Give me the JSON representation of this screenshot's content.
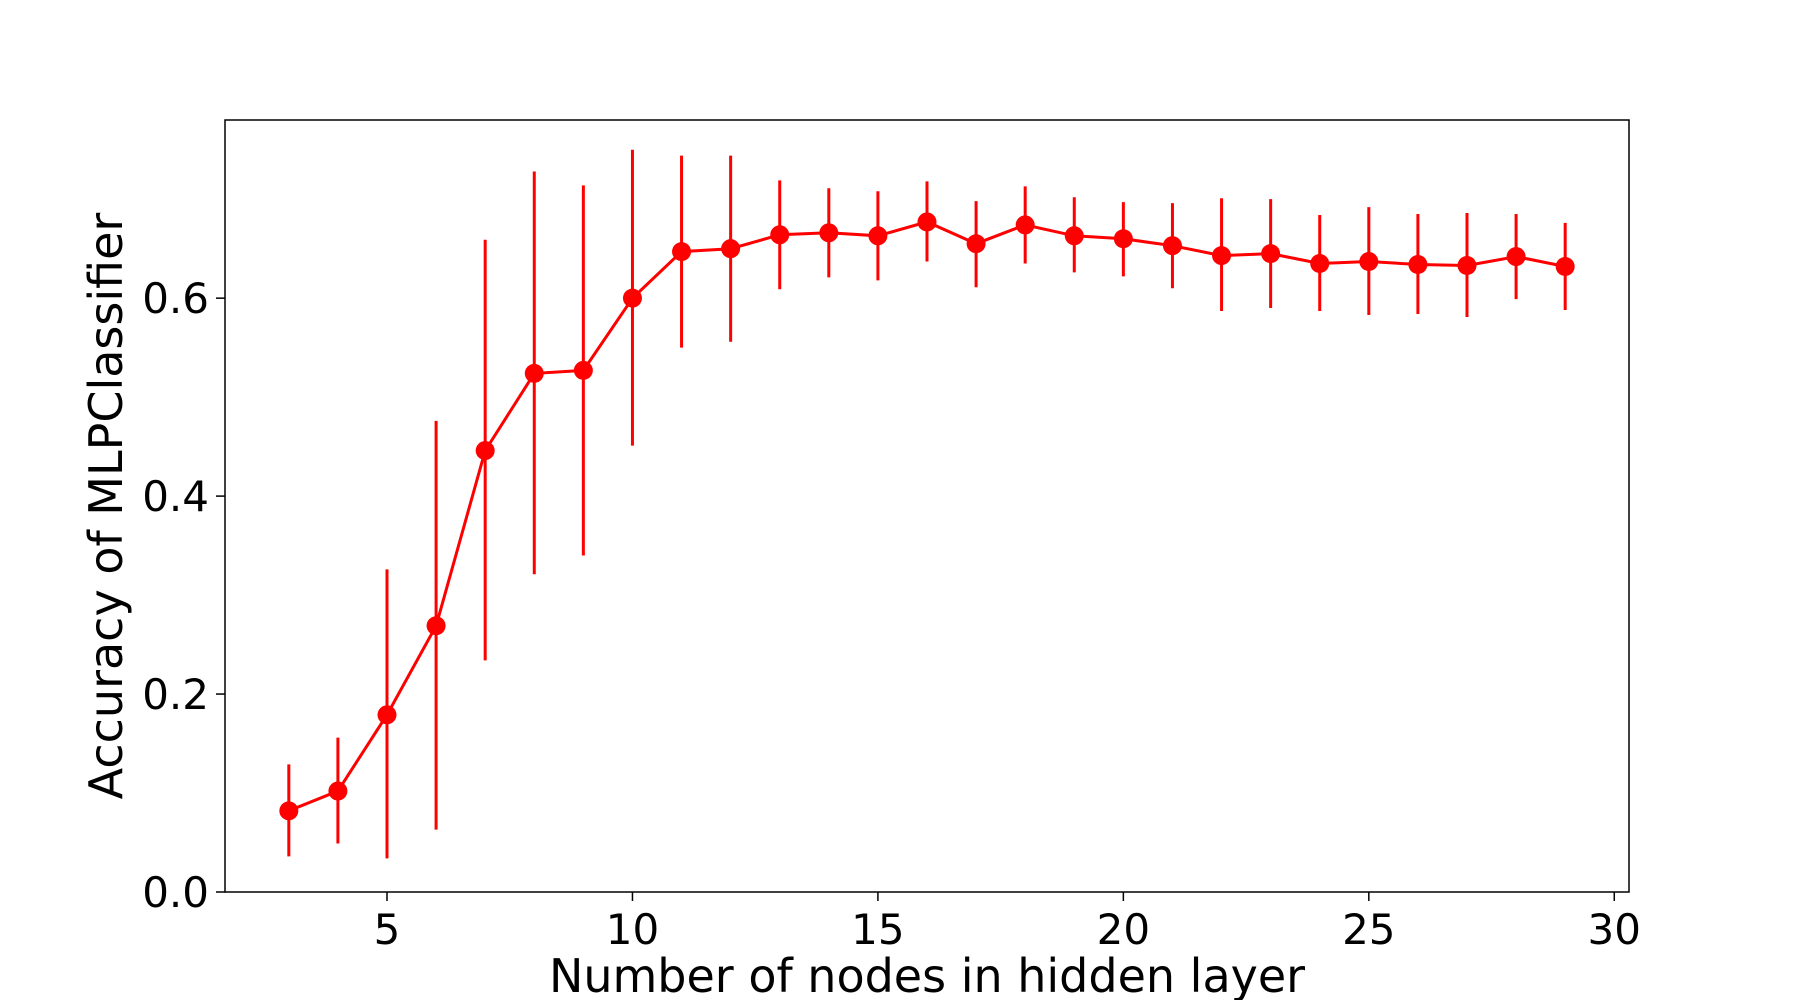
{
  "chart_data": {
    "type": "line",
    "title": "",
    "xlabel": "Number of nodes in hidden layer",
    "ylabel": "Accuracy of MLPClassifier",
    "xlim": [
      1.7,
      30.3
    ],
    "ylim": [
      0.0,
      0.78
    ],
    "xticks": [
      5,
      10,
      15,
      20,
      25,
      30
    ],
    "yticks": [
      0.0,
      0.2,
      0.4,
      0.6
    ],
    "ytick_labels": [
      "0.0",
      "0.2",
      "0.4",
      "0.6"
    ],
    "grid": false,
    "legend": "none",
    "color": "#ff0000",
    "series": [
      {
        "x": [
          3,
          4,
          5,
          6,
          7,
          8,
          9,
          10,
          11,
          12,
          13,
          14,
          15,
          16,
          17,
          18,
          19,
          20,
          21,
          22,
          23,
          24,
          25,
          26,
          27,
          28,
          29
        ],
        "y": [
          0.082,
          0.102,
          0.179,
          0.269,
          0.446,
          0.524,
          0.527,
          0.6,
          0.647,
          0.65,
          0.664,
          0.666,
          0.663,
          0.677,
          0.655,
          0.674,
          0.663,
          0.66,
          0.653,
          0.643,
          0.645,
          0.635,
          0.637,
          0.634,
          0.633,
          0.642,
          0.632
        ],
        "yerr_low": [
          0.036,
          0.049,
          0.034,
          0.063,
          0.234,
          0.321,
          0.34,
          0.451,
          0.55,
          0.556,
          0.609,
          0.621,
          0.618,
          0.637,
          0.611,
          0.635,
          0.626,
          0.622,
          0.61,
          0.587,
          0.59,
          0.587,
          0.583,
          0.584,
          0.581,
          0.599,
          0.588
        ],
        "yerr_high": [
          0.129,
          0.156,
          0.326,
          0.476,
          0.659,
          0.728,
          0.714,
          0.75,
          0.744,
          0.744,
          0.719,
          0.711,
          0.708,
          0.718,
          0.698,
          0.713,
          0.702,
          0.697,
          0.696,
          0.701,
          0.7,
          0.684,
          0.692,
          0.685,
          0.686,
          0.685,
          0.676
        ]
      }
    ]
  }
}
